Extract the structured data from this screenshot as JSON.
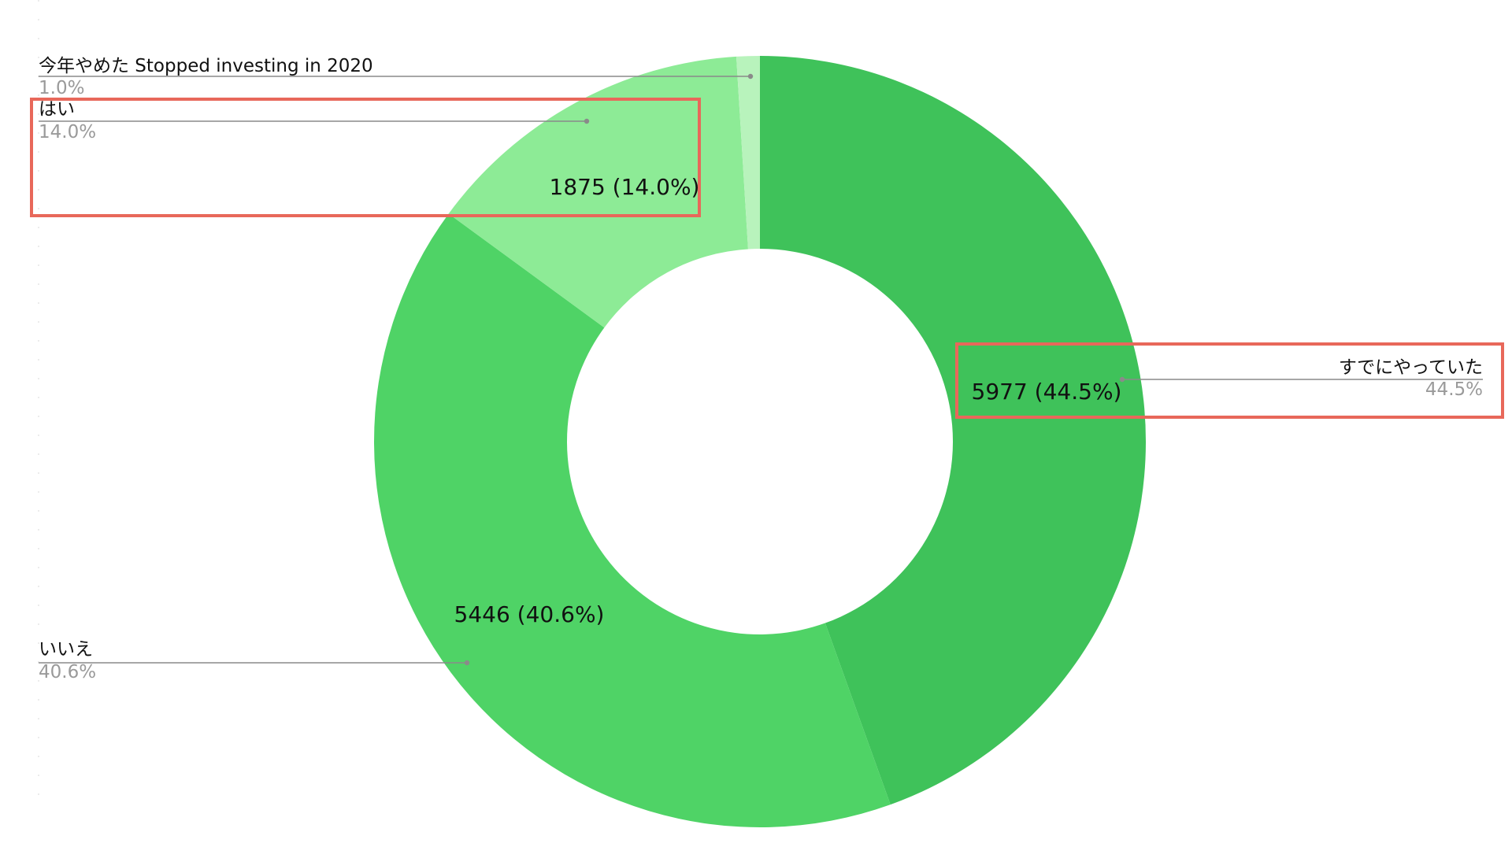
{
  "chart_data": {
    "type": "pie",
    "donut": true,
    "slices": [
      {
        "label": "すでにやっていた",
        "value": 5977,
        "percent": "44.5%",
        "slice_label": "5977 (44.5%)",
        "color": "#3fc25a",
        "highlighted": true
      },
      {
        "label": "いいえ",
        "value": 5446,
        "percent": "40.6%",
        "slice_label": "5446 (40.6%)",
        "color": "#4fd366",
        "highlighted": false
      },
      {
        "label": "はい",
        "value": 1875,
        "percent": "14.0%",
        "slice_label": "1875 (14.0%)",
        "color": "#8deb96",
        "highlighted": true
      },
      {
        "label": "今年やめた Stopped investing in 2020",
        "value": 131,
        "percent": "1.0%",
        "slice_label": "",
        "color": "#b8f3bc",
        "highlighted": false
      }
    ],
    "highlight_color": "#e8685a"
  }
}
